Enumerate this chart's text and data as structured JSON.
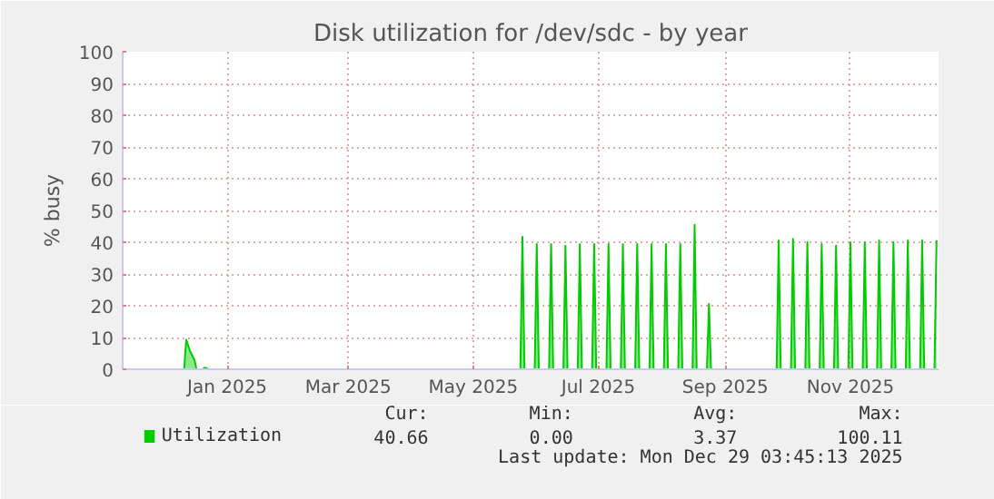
{
  "chart_data": {
    "type": "area",
    "title": "Disk utilization for /dev/sdc - by year",
    "ylabel": "% busy",
    "xlim": [
      "2024-11-26",
      "2025-12-29"
    ],
    "ylim": [
      0,
      100
    ],
    "yticks": [
      0,
      10,
      20,
      30,
      40,
      50,
      60,
      70,
      80,
      90,
      100
    ],
    "xticks": [
      {
        "value": "2025-01-16",
        "label": "Jan 2025"
      },
      {
        "value": "2025-03-16",
        "label": "Mar 2025"
      },
      {
        "value": "2025-05-16",
        "label": "May 2025"
      },
      {
        "value": "2025-07-16",
        "label": "Jul 2025"
      },
      {
        "value": "2025-09-16",
        "label": "Sep 2025"
      },
      {
        "value": "2025-11-16",
        "label": "Nov 2025"
      }
    ],
    "grid": true,
    "legend": "bottom",
    "marker": "none",
    "series": [
      {
        "name": "Utilization",
        "color": "#00cc00",
        "x": [
          "2024-11-26",
          "2024-12-26",
          "2024-12-27",
          "2024-12-29",
          "2024-12-31",
          "2025-01-01",
          "2025-01-04",
          "2025-01-05",
          "2025-01-07",
          "2025-03-14",
          "2025-03-15",
          "2025-06-02",
          "2025-06-08",
          "2025-06-09",
          "2025-06-10",
          "2025-06-15",
          "2025-06-16",
          "2025-06-17",
          "2025-06-22",
          "2025-06-23",
          "2025-06-24",
          "2025-06-29",
          "2025-06-30",
          "2025-07-01",
          "2025-07-06",
          "2025-07-07",
          "2025-07-08",
          "2025-07-13",
          "2025-07-14",
          "2025-07-15",
          "2025-07-20",
          "2025-07-21",
          "2025-07-22",
          "2025-07-27",
          "2025-07-28",
          "2025-07-29",
          "2025-08-03",
          "2025-08-04",
          "2025-08-05",
          "2025-08-10",
          "2025-08-11",
          "2025-08-12",
          "2025-08-17",
          "2025-08-18",
          "2025-08-19",
          "2025-08-24",
          "2025-08-25",
          "2025-08-26",
          "2025-08-31",
          "2025-09-01",
          "2025-09-02",
          "2025-09-07",
          "2025-09-08",
          "2025-09-09",
          "2025-10-11",
          "2025-10-12",
          "2025-10-13",
          "2025-10-18",
          "2025-10-19",
          "2025-10-20",
          "2025-10-25",
          "2025-10-26",
          "2025-10-27",
          "2025-11-01",
          "2025-11-02",
          "2025-11-03",
          "2025-11-08",
          "2025-11-09",
          "2025-11-10",
          "2025-11-15",
          "2025-11-16",
          "2025-11-17",
          "2025-11-22",
          "2025-11-23",
          "2025-11-24",
          "2025-11-29",
          "2025-11-30",
          "2025-12-01",
          "2025-12-06",
          "2025-12-07",
          "2025-12-08",
          "2025-12-13",
          "2025-12-14",
          "2025-12-15",
          "2025-12-20",
          "2025-12-21",
          "2025-12-22",
          "2025-12-27",
          "2025-12-28"
        ],
        "values": [
          0,
          0,
          9.3,
          5.5,
          3,
          0,
          0,
          0.5,
          0,
          0,
          null,
          0,
          0,
          41.7,
          0,
          0,
          39.4,
          0,
          0,
          39.4,
          0,
          0,
          38.9,
          0,
          0,
          39.4,
          0,
          0,
          39.4,
          0,
          0,
          39.4,
          0,
          0,
          39.4,
          0,
          0,
          39.4,
          0,
          0,
          39.4,
          0,
          0,
          39.4,
          0,
          0,
          39.4,
          0,
          0,
          45.5,
          0,
          0,
          20.6,
          0,
          0,
          40.6,
          0,
          0,
          41.1,
          0,
          0,
          40,
          0,
          0,
          39.4,
          0,
          0,
          38.9,
          0,
          0,
          40,
          0,
          0,
          40,
          0,
          0,
          40.6,
          0,
          0,
          40,
          0,
          0,
          40.6,
          0,
          0,
          40.6,
          0,
          0,
          40.6
        ]
      }
    ],
    "annotations": [
      "Cur:",
      "Min:",
      "Avg:",
      "Max:",
      "40.66",
      "0.00",
      "3.37",
      "100.11",
      "Last update: Mon Dec 29 03:45:13 2025"
    ]
  }
}
